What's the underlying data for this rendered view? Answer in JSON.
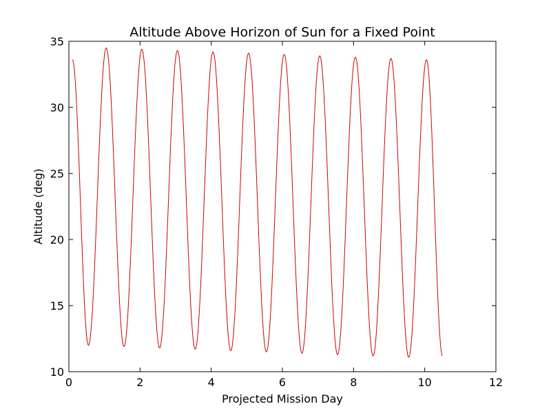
{
  "chart_data": {
    "type": "line",
    "title": "Altitude Above Horizon of Sun for a Fixed Point",
    "xlabel": "Projected Mission Day",
    "ylabel": "Altitude (deg)",
    "xlim": [
      0,
      12
    ],
    "ylim": [
      10,
      35
    ],
    "xticks": [
      0,
      2,
      4,
      6,
      8,
      10,
      12
    ],
    "yticks": [
      10,
      15,
      20,
      25,
      30,
      35
    ],
    "grid": false,
    "legend": "none",
    "series": [
      {
        "color": "#cc0000",
        "x_range": [
          0.1,
          10.5
        ],
        "start_value": 33.6,
        "peaks": [
          {
            "x": 1.05,
            "y": 34.5
          },
          {
            "x": 2.05,
            "y": 34.4
          },
          {
            "x": 3.05,
            "y": 34.3
          },
          {
            "x": 4.05,
            "y": 34.2
          },
          {
            "x": 5.05,
            "y": 34.1
          },
          {
            "x": 6.05,
            "y": 34.0
          },
          {
            "x": 7.05,
            "y": 33.9
          },
          {
            "x": 8.05,
            "y": 33.8
          },
          {
            "x": 9.05,
            "y": 33.7
          },
          {
            "x": 10.05,
            "y": 33.6
          }
        ],
        "troughs": [
          {
            "x": 0.55,
            "y": 12.0
          },
          {
            "x": 1.55,
            "y": 11.9
          },
          {
            "x": 2.55,
            "y": 11.8
          },
          {
            "x": 3.55,
            "y": 11.7
          },
          {
            "x": 4.55,
            "y": 11.6
          },
          {
            "x": 5.55,
            "y": 11.5
          },
          {
            "x": 6.55,
            "y": 11.4
          },
          {
            "x": 7.55,
            "y": 11.3
          },
          {
            "x": 8.55,
            "y": 11.2
          },
          {
            "x": 9.55,
            "y": 11.1
          }
        ],
        "end_value": 11.2
      }
    ]
  }
}
